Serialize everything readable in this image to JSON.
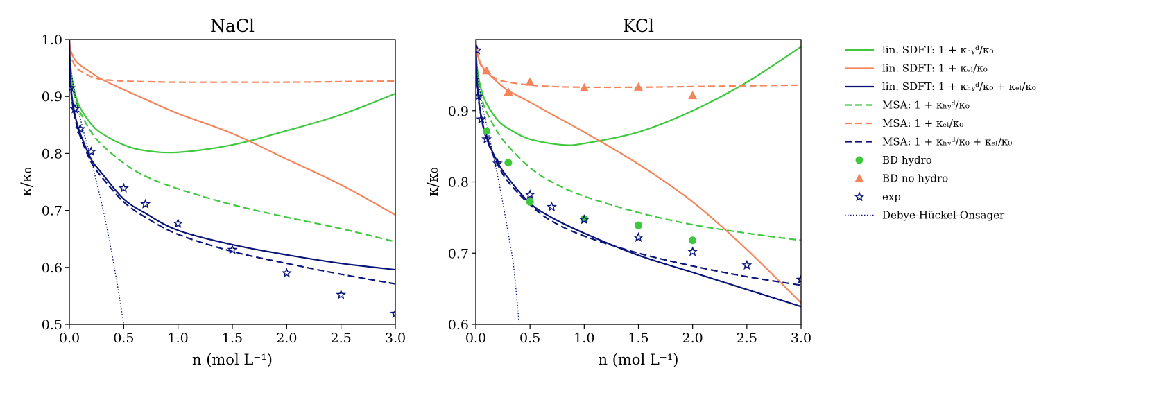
{
  "colors": {
    "green": "#3dc83d",
    "orange": "#f5845a",
    "navy": "#0a1478",
    "black": "#000000"
  },
  "chart_data": [
    {
      "type": "line",
      "title": "NaCl",
      "xlabel": "n (mol L⁻¹)",
      "ylabel": "κ/κ₀",
      "xlim": [
        0,
        3
      ],
      "ylim": [
        0.5,
        1.0
      ],
      "xticks": [
        "0.0",
        "0.5",
        "1.0",
        "1.5",
        "2.0",
        "2.5",
        "3.0"
      ],
      "yticks": [
        "0.5",
        "0.6",
        "0.7",
        "0.8",
        "0.9",
        "1.0"
      ],
      "grid": false,
      "series": [
        {
          "key": "sdft_hyd",
          "name": "lin. SDFT: 1 + κ_hyd/κ₀",
          "style": "solid",
          "color": "green",
          "x": [
            0,
            0.01,
            0.03,
            0.06,
            0.1,
            0.2,
            0.3,
            0.5,
            0.7,
            1.0,
            1.5,
            2.0,
            2.5,
            3.0
          ],
          "y": [
            1.0,
            0.955,
            0.925,
            0.9,
            0.88,
            0.852,
            0.835,
            0.815,
            0.805,
            0.802,
            0.815,
            0.84,
            0.868,
            0.905
          ]
        },
        {
          "key": "sdft_el",
          "name": "lin. SDFT: 1 + κ_el/κ₀",
          "style": "solid",
          "color": "orange",
          "x": [
            0,
            0.01,
            0.03,
            0.06,
            0.1,
            0.2,
            0.3,
            0.5,
            0.7,
            1.0,
            1.5,
            2.0,
            2.5,
            3.0
          ],
          "y": [
            1.0,
            0.983,
            0.972,
            0.962,
            0.955,
            0.942,
            0.93,
            0.912,
            0.895,
            0.87,
            0.835,
            0.79,
            0.745,
            0.692
          ]
        },
        {
          "key": "sdft_tot",
          "name": "lin. SDFT: 1 + κ_hyd/κ₀ + κ_el/κ₀",
          "style": "solid",
          "color": "navy",
          "x": [
            0,
            0.01,
            0.03,
            0.06,
            0.1,
            0.2,
            0.3,
            0.5,
            0.7,
            1.0,
            1.5,
            2.0,
            2.5,
            3.0
          ],
          "y": [
            1.0,
            0.93,
            0.89,
            0.86,
            0.835,
            0.79,
            0.765,
            0.72,
            0.695,
            0.665,
            0.64,
            0.622,
            0.607,
            0.596
          ]
        },
        {
          "key": "msa_hyd",
          "name": "MSA: 1 + κ_hyd/κ₀",
          "style": "dashed",
          "color": "green",
          "x": [
            0,
            0.01,
            0.03,
            0.06,
            0.1,
            0.2,
            0.3,
            0.5,
            0.7,
            1.0,
            1.5,
            2.0,
            2.5,
            3.0
          ],
          "y": [
            1.0,
            0.945,
            0.915,
            0.892,
            0.872,
            0.838,
            0.815,
            0.783,
            0.76,
            0.738,
            0.71,
            0.688,
            0.668,
            0.645
          ]
        },
        {
          "key": "msa_el",
          "name": "MSA: 1 + κ_el/κ₀",
          "style": "dashed",
          "color": "orange",
          "x": [
            0,
            0.01,
            0.03,
            0.06,
            0.1,
            0.2,
            0.3,
            0.5,
            0.7,
            1.0,
            1.5,
            2.0,
            2.5,
            3.0
          ],
          "y": [
            1.0,
            0.975,
            0.962,
            0.952,
            0.945,
            0.935,
            0.93,
            0.927,
            0.926,
            0.925,
            0.925,
            0.925,
            0.926,
            0.927
          ]
        },
        {
          "key": "msa_tot",
          "name": "MSA: 1 + κ_hyd/κ₀ + κ_el/κ₀",
          "style": "dashed",
          "color": "navy",
          "x": [
            0,
            0.01,
            0.03,
            0.06,
            0.1,
            0.2,
            0.3,
            0.5,
            0.7,
            1.0,
            1.5,
            2.0,
            2.5,
            3.0
          ],
          "y": [
            1.0,
            0.925,
            0.885,
            0.855,
            0.83,
            0.785,
            0.758,
            0.715,
            0.688,
            0.658,
            0.628,
            0.607,
            0.588,
            0.571
          ]
        },
        {
          "key": "bd_hydro",
          "name": "BD hydro",
          "style": "marker-circle",
          "color": "green",
          "x": [],
          "y": []
        },
        {
          "key": "bd_nohydro",
          "name": "BD no hydro",
          "style": "marker-triangle",
          "color": "orange",
          "x": [],
          "y": []
        },
        {
          "key": "exp",
          "name": "exp",
          "style": "marker-star",
          "color": "navy",
          "x": [
            0.01,
            0.05,
            0.1,
            0.2,
            0.5,
            0.7,
            1.0,
            1.5,
            2.0,
            2.5,
            3.0
          ],
          "y": [
            0.915,
            0.878,
            0.843,
            0.803,
            0.739,
            0.711,
            0.677,
            0.631,
            0.59,
            0.552,
            0.519
          ]
        },
        {
          "key": "dho",
          "name": "Debye-Hückel-Onsager",
          "style": "dotted",
          "color": "navy",
          "x": [
            0,
            0.005,
            0.01,
            0.02,
            0.04,
            0.06,
            0.1,
            0.15,
            0.2,
            0.25,
            0.3,
            0.35,
            0.4,
            0.45,
            0.5
          ],
          "y": [
            1.0,
            0.97,
            0.957,
            0.94,
            0.915,
            0.895,
            0.862,
            0.825,
            0.79,
            0.75,
            0.71,
            0.665,
            0.615,
            0.56,
            0.5
          ]
        }
      ]
    },
    {
      "type": "line",
      "title": "KCl",
      "xlabel": "n (mol L⁻¹)",
      "ylabel": "κ/κ₀",
      "xlim": [
        0,
        3
      ],
      "ylim": [
        0.6,
        1.0
      ],
      "xticks": [
        "0.0",
        "0.5",
        "1.0",
        "1.5",
        "2.0",
        "2.5",
        "3.0"
      ],
      "yticks": [
        "0.6",
        "0.7",
        "0.8",
        "0.9"
      ],
      "grid": false,
      "series": [
        {
          "key": "sdft_hyd",
          "name": "lin. SDFT: 1 + κ_hyd/κ₀",
          "style": "solid",
          "color": "green",
          "x": [
            0,
            0.01,
            0.03,
            0.06,
            0.1,
            0.2,
            0.3,
            0.5,
            0.8,
            1.0,
            1.5,
            2.0,
            2.5,
            3.0
          ],
          "y": [
            1.0,
            0.965,
            0.943,
            0.925,
            0.91,
            0.887,
            0.875,
            0.86,
            0.852,
            0.854,
            0.87,
            0.9,
            0.94,
            0.99
          ]
        },
        {
          "key": "sdft_el",
          "name": "lin. SDFT: 1 + κ_el/κ₀",
          "style": "solid",
          "color": "orange",
          "x": [
            0,
            0.01,
            0.03,
            0.06,
            0.1,
            0.2,
            0.3,
            0.5,
            0.7,
            1.0,
            1.5,
            2.0,
            2.5,
            3.0
          ],
          "y": [
            1.0,
            0.985,
            0.972,
            0.962,
            0.955,
            0.94,
            0.928,
            0.912,
            0.895,
            0.87,
            0.825,
            0.772,
            0.705,
            0.63
          ]
        },
        {
          "key": "sdft_tot",
          "name": "lin. SDFT: 1 + κ_hyd/κ₀ + κ_el/κ₀",
          "style": "solid",
          "color": "navy",
          "x": [
            0,
            0.01,
            0.03,
            0.06,
            0.1,
            0.2,
            0.3,
            0.5,
            0.7,
            1.0,
            1.5,
            2.0,
            2.5,
            3.0
          ],
          "y": [
            1.0,
            0.95,
            0.912,
            0.885,
            0.862,
            0.828,
            0.805,
            0.77,
            0.75,
            0.728,
            0.697,
            0.673,
            0.649,
            0.625
          ]
        },
        {
          "key": "msa_hyd",
          "name": "MSA: 1 + κ_hyd/κ₀",
          "style": "dashed",
          "color": "green",
          "x": [
            0,
            0.01,
            0.03,
            0.06,
            0.1,
            0.2,
            0.3,
            0.5,
            0.7,
            1.0,
            1.5,
            2.0,
            2.5,
            3.0
          ],
          "y": [
            1.0,
            0.958,
            0.935,
            0.915,
            0.898,
            0.87,
            0.85,
            0.82,
            0.8,
            0.78,
            0.757,
            0.74,
            0.728,
            0.718
          ]
        },
        {
          "key": "msa_el",
          "name": "MSA: 1 + κ_el/κ₀",
          "style": "dashed",
          "color": "orange",
          "x": [
            0,
            0.01,
            0.03,
            0.06,
            0.1,
            0.2,
            0.3,
            0.5,
            0.7,
            1.0,
            1.5,
            2.0,
            2.5,
            3.0
          ],
          "y": [
            1.0,
            0.982,
            0.97,
            0.96,
            0.953,
            0.944,
            0.94,
            0.936,
            0.934,
            0.933,
            0.933,
            0.934,
            0.935,
            0.936
          ]
        },
        {
          "key": "msa_tot",
          "name": "MSA: 1 + κ_hyd/κ₀ + κ_el/κ₀",
          "style": "dashed",
          "color": "navy",
          "x": [
            0,
            0.01,
            0.03,
            0.06,
            0.1,
            0.2,
            0.3,
            0.5,
            0.7,
            1.0,
            1.5,
            2.0,
            2.5,
            3.0
          ],
          "y": [
            1.0,
            0.945,
            0.91,
            0.883,
            0.86,
            0.825,
            0.8,
            0.768,
            0.745,
            0.724,
            0.7,
            0.682,
            0.667,
            0.655
          ]
        },
        {
          "key": "bd_hydro",
          "name": "BD hydro",
          "style": "marker-circle",
          "color": "green",
          "x": [
            0.1,
            0.3,
            0.5,
            1.0,
            1.5,
            2.0
          ],
          "y": [
            0.871,
            0.827,
            0.772,
            0.748,
            0.739,
            0.718
          ]
        },
        {
          "key": "bd_nohydro",
          "name": "BD no hydro",
          "style": "marker-triangle",
          "color": "orange",
          "x": [
            0.1,
            0.3,
            0.5,
            1.0,
            1.5,
            2.0
          ],
          "y": [
            0.956,
            0.926,
            0.94,
            0.932,
            0.933,
            0.921
          ]
        },
        {
          "key": "exp",
          "name": "exp",
          "style": "marker-star",
          "color": "navy",
          "x": [
            0.01,
            0.02,
            0.05,
            0.1,
            0.2,
            0.5,
            0.7,
            1.0,
            1.5,
            2.0,
            2.5,
            3.0
          ],
          "y": [
            0.985,
            0.92,
            0.888,
            0.86,
            0.826,
            0.782,
            0.765,
            0.747,
            0.722,
            0.702,
            0.683,
            0.663
          ]
        },
        {
          "key": "dho",
          "name": "Debye-Hückel-Onsager",
          "style": "dotted",
          "color": "navy",
          "x": [
            0,
            0.005,
            0.01,
            0.02,
            0.04,
            0.06,
            0.1,
            0.15,
            0.2,
            0.25,
            0.3,
            0.35,
            0.4
          ],
          "y": [
            1.0,
            0.975,
            0.963,
            0.947,
            0.925,
            0.907,
            0.88,
            0.845,
            0.81,
            0.77,
            0.727,
            0.68,
            0.6
          ]
        }
      ]
    }
  ],
  "legend": {
    "placement": "right",
    "entries": [
      {
        "key": "sdft_hyd",
        "label": "lin. SDFT: 1 + κ_hyd/κ₀",
        "style": "solid",
        "color": "green"
      },
      {
        "key": "sdft_el",
        "label": "lin. SDFT: 1 + κ_el/κ₀",
        "style": "solid",
        "color": "orange"
      },
      {
        "key": "sdft_tot",
        "label": "lin. SDFT: 1 + κ_hyd/κ₀ + κ_el/κ₀",
        "style": "solid",
        "color": "navy"
      },
      {
        "key": "msa_hyd",
        "label": "MSA: 1 + κ_hyd/κ₀",
        "style": "dashed",
        "color": "green"
      },
      {
        "key": "msa_el",
        "label": "MSA: 1 + κ_el/κ₀",
        "style": "dashed",
        "color": "orange"
      },
      {
        "key": "msa_tot",
        "label": "MSA: 1 + κ_hyd/κ₀ + κ_el/κ₀",
        "style": "dashed",
        "color": "navy"
      },
      {
        "key": "bd_hydro",
        "label": "BD hydro",
        "style": "marker-circle",
        "color": "green"
      },
      {
        "key": "bd_nohydro",
        "label": "BD no hydro",
        "style": "marker-triangle",
        "color": "orange"
      },
      {
        "key": "exp",
        "label": "exp",
        "style": "marker-star",
        "color": "navy"
      },
      {
        "key": "dho",
        "label": "Debye-Hückel-Onsager",
        "style": "dotted",
        "color": "navy"
      }
    ]
  }
}
